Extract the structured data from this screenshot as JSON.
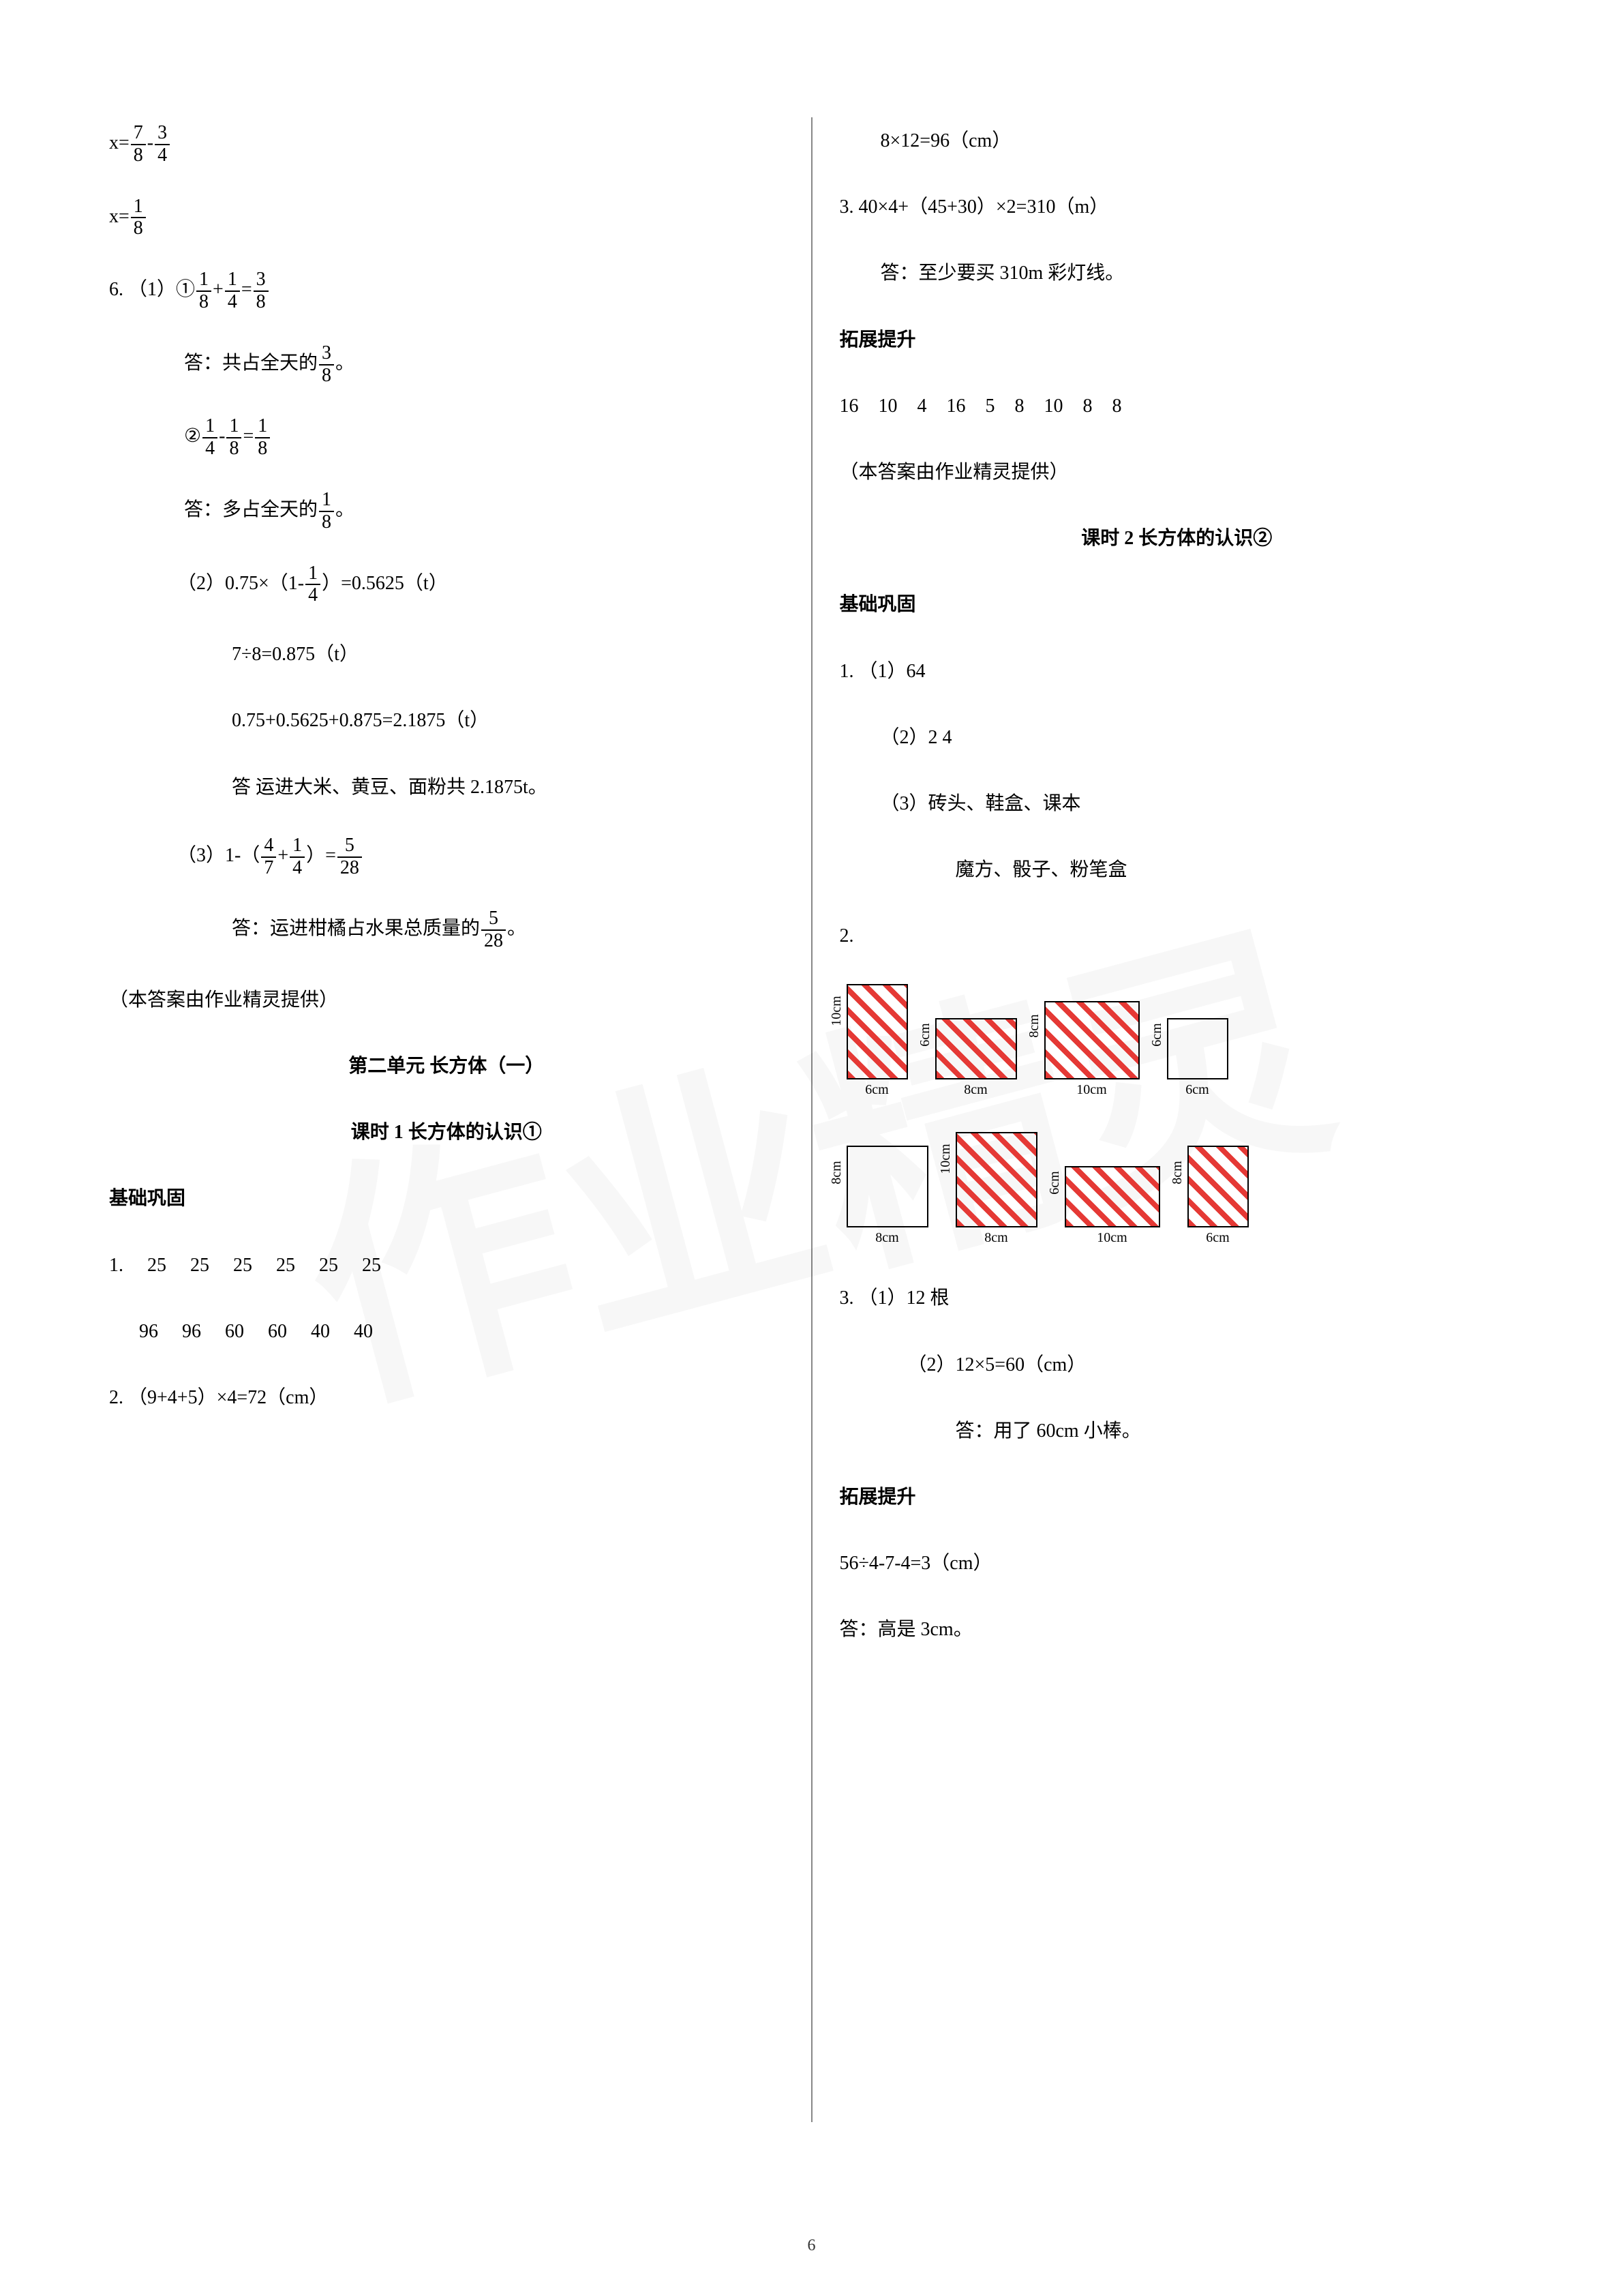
{
  "page_number": "6",
  "colors": {
    "text": "#000000",
    "hatch": "#e53935",
    "divider": "#888888",
    "background": "#ffffff",
    "watermark": "rgba(0,0,0,0.03)"
  },
  "watermark_text": "作业精灵",
  "left": {
    "eq_x1_lhs": "x=",
    "eq_x1_f1n": "7",
    "eq_x1_f1d": "8",
    "eq_x1_op": "-",
    "eq_x1_f2n": "3",
    "eq_x1_f2d": "4",
    "eq_x2_lhs": "x=",
    "eq_x2_f1n": "1",
    "eq_x2_f1d": "8",
    "q6_1_head": "6. （1）①",
    "q6_1_f1n": "1",
    "q6_1_f1d": "8",
    "q6_1_op1": "+",
    "q6_1_f2n": "1",
    "q6_1_f2d": "4",
    "q6_1_eq": "=",
    "q6_1_f3n": "3",
    "q6_1_f3d": "8",
    "q6_1_ans_pre": "答：共占全天的",
    "q6_1_ans_fn": "3",
    "q6_1_ans_fd": "8",
    "q6_1_ans_suf": "。",
    "q6_1b_head": "②",
    "q6_1b_f1n": "1",
    "q6_1b_f1d": "4",
    "q6_1b_op": "-",
    "q6_1b_f2n": "1",
    "q6_1b_f2d": "8",
    "q6_1b_eq": "=",
    "q6_1b_f3n": "1",
    "q6_1b_f3d": "8",
    "q6_1b_ans_pre": "答：多占全天的",
    "q6_1b_ans_fn": "1",
    "q6_1b_ans_fd": "8",
    "q6_1b_ans_suf": "。",
    "q6_2_head": "（2）0.75×（1-",
    "q6_2_f1n": "1",
    "q6_2_f1d": "4",
    "q6_2_tail": "）=0.5625（t）",
    "q6_2b": "7÷8=0.875（t）",
    "q6_2c": "0.75+0.5625+0.875=2.1875（t）",
    "q6_2_ans": "答 运进大米、黄豆、面粉共 2.1875t。",
    "q6_3_head": "（3）1-（",
    "q6_3_f1n": "4",
    "q6_3_f1d": "7",
    "q6_3_op": "+",
    "q6_3_f2n": "1",
    "q6_3_f2d": "4",
    "q6_3_mid": "）=",
    "q6_3_f3n": "5",
    "q6_3_f3d": "28",
    "q6_3_ans_pre": "答：运进柑橘占水果总质量的",
    "q6_3_ans_fn": "5",
    "q6_3_ans_fd": "28",
    "q6_3_ans_suf": "。",
    "credit": "（本答案由作业精灵提供）",
    "unit_title": "第二单元 长方体（一）",
    "lesson1_title": "课时 1 长方体的认识①",
    "jichu": "基础巩固",
    "q1_row1": "1. 25   25   25   25   25   25",
    "q1_row2": "96   96   60   60   40   40",
    "q2": "2. （9+4+5）×4=72（cm）"
  },
  "right": {
    "r_top1": "8×12=96（cm）",
    "r_q3": "3. 40×4+（45+30）×2=310（m）",
    "r_q3_ans": "答：至少要买 310m 彩灯线。",
    "tuozhan": "拓展提升",
    "r_nums": "16   10   4   16   5   8   10   8   8",
    "credit": "（本答案由作业精灵提供）",
    "lesson2_title": "课时 2 长方体的认识②",
    "jichu": "基础巩固",
    "r1_1": "1. （1）64",
    "r1_2": "（2）2    4",
    "r1_3": "（3）砖头、鞋盒、课本",
    "r1_3b": "魔方、骰子、粉笔盒",
    "r2_label": "2.",
    "boxes_row1": [
      {
        "w": 90,
        "h": 140,
        "left": "10cm",
        "bot": "6cm",
        "hatch": true
      },
      {
        "w": 120,
        "h": 90,
        "left": "6cm",
        "bot": "8cm",
        "hatch": true
      },
      {
        "w": 140,
        "h": 115,
        "left": "8cm",
        "bot": "10cm",
        "hatch": true
      },
      {
        "w": 90,
        "h": 90,
        "left": "6cm",
        "bot": "6cm",
        "hatch": false
      }
    ],
    "boxes_row2": [
      {
        "w": 120,
        "h": 120,
        "left": "8cm",
        "bot": "8cm",
        "hatch": false
      },
      {
        "w": 120,
        "h": 140,
        "left": "10cm",
        "bot": "8cm",
        "hatch": true
      },
      {
        "w": 140,
        "h": 90,
        "left": "6cm",
        "bot": "10cm",
        "hatch": true
      },
      {
        "w": 90,
        "h": 120,
        "left": "8cm",
        "bot": "6cm",
        "hatch": true
      }
    ],
    "r3_1": "3. （1）12 根",
    "r3_2": "（2）12×5=60（cm）",
    "r3_ans": "答：用了 60cm 小棒。",
    "tuozhan2": "拓展提升",
    "r_calc": "56÷4-7-4=3（cm）",
    "r_calc_ans": "答：高是 3cm。"
  }
}
